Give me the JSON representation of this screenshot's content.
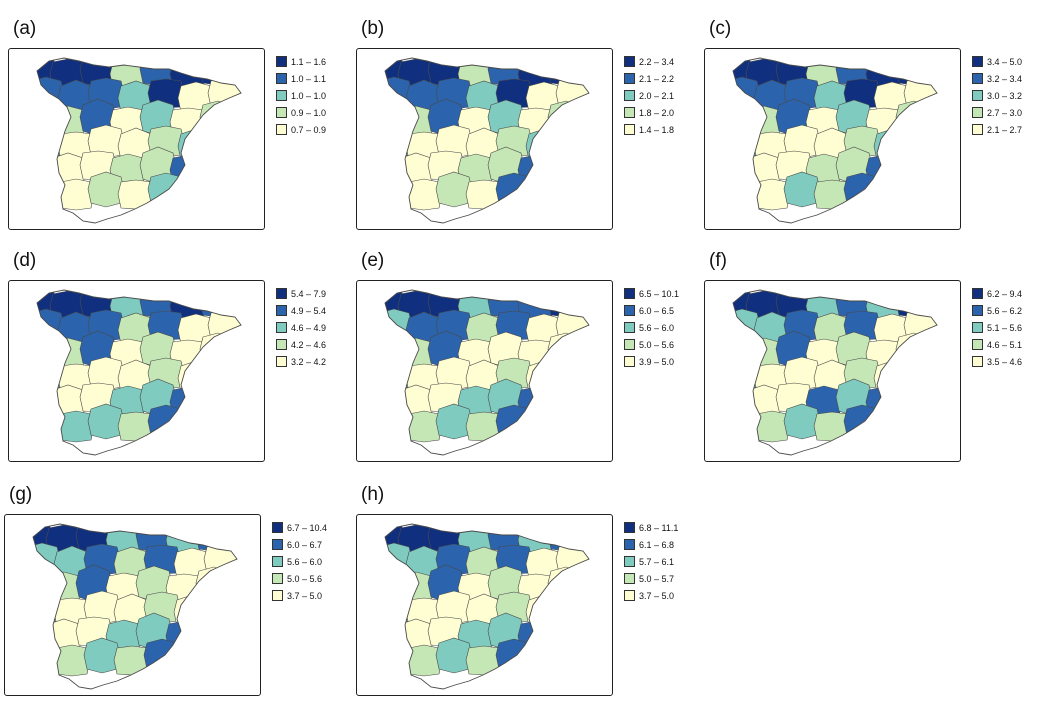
{
  "palette": [
    "#10307f",
    "#2b63ac",
    "#7fcbbf",
    "#c5e6b5",
    "#fefed2"
  ],
  "panels": [
    {
      "tag": "(a)",
      "legend": [
        "1.1 – 1.6",
        "1.0 – 1.1",
        "1.0 – 1.0",
        "0.9 – 1.0",
        "0.7 – 0.9"
      ],
      "fills": [
        0,
        0,
        0,
        3,
        1,
        0,
        0,
        1,
        1,
        1,
        2,
        0,
        4,
        4,
        3,
        3,
        1,
        4,
        2,
        4,
        3,
        2,
        4,
        4,
        4,
        3,
        2,
        4,
        3,
        4,
        4,
        3,
        3,
        1,
        4,
        3,
        4,
        3,
        4,
        2,
        1,
        1
      ]
    },
    {
      "tag": "(b)",
      "legend": [
        "2.2 – 3.4",
        "2.1 – 2.2",
        "2.0 – 2.1",
        "1.8 – 2.0",
        "1.4 – 1.8"
      ],
      "fills": [
        0,
        0,
        0,
        3,
        1,
        0,
        0,
        1,
        1,
        1,
        2,
        0,
        4,
        4,
        3,
        3,
        1,
        4,
        2,
        4,
        3,
        2,
        4,
        4,
        4,
        3,
        2,
        4,
        3,
        4,
        4,
        3,
        3,
        1,
        4,
        3,
        4,
        3,
        4,
        1,
        0,
        3
      ]
    },
    {
      "tag": "(c)",
      "legend": [
        "3.4 – 5.0",
        "3.2 – 3.4",
        "3.0 – 3.2",
        "2.7 – 3.0",
        "2.1 – 2.7"
      ],
      "fills": [
        0,
        0,
        0,
        3,
        1,
        0,
        0,
        1,
        1,
        1,
        2,
        0,
        4,
        4,
        3,
        3,
        1,
        4,
        2,
        4,
        3,
        2,
        4,
        4,
        4,
        3,
        2,
        4,
        3,
        4,
        4,
        3,
        3,
        1,
        4,
        3,
        4,
        2,
        3,
        1,
        0,
        0
      ]
    },
    {
      "tag": "(d)",
      "legend": [
        "5.4 – 7.9",
        "4.9 – 5.4",
        "4.6 – 4.9",
        "4.2 – 4.6",
        "3.2 – 4.2"
      ],
      "fills": [
        0,
        0,
        0,
        2,
        1,
        0,
        1,
        1,
        1,
        1,
        3,
        1,
        4,
        4,
        4,
        3,
        1,
        4,
        3,
        4,
        4,
        2,
        4,
        4,
        4,
        3,
        4,
        4,
        3,
        4,
        4,
        2,
        2,
        1,
        4,
        4,
        2,
        2,
        3,
        1,
        0,
        0
      ]
    },
    {
      "tag": "(e)",
      "legend": [
        "6.5 – 10.1",
        "6.0 – 6.5",
        "5.6 – 6.0",
        "5.0 – 5.6",
        "3.9 – 5.0"
      ],
      "fills": [
        0,
        0,
        0,
        2,
        1,
        1,
        0,
        2,
        1,
        1,
        3,
        1,
        4,
        4,
        4,
        3,
        1,
        4,
        4,
        4,
        4,
        2,
        4,
        4,
        4,
        3,
        4,
        4,
        4,
        4,
        4,
        2,
        2,
        1,
        4,
        4,
        3,
        2,
        3,
        1,
        0,
        0
      ]
    },
    {
      "tag": "(f)",
      "legend": [
        "6.2 – 9.4",
        "5.6 – 6.2",
        "5.1 – 5.6",
        "4.6 – 5.1",
        "3.5 – 4.6"
      ],
      "fills": [
        0,
        0,
        0,
        2,
        1,
        2,
        0,
        2,
        2,
        1,
        3,
        1,
        4,
        4,
        4,
        3,
        1,
        4,
        3,
        4,
        4,
        2,
        4,
        4,
        4,
        3,
        4,
        4,
        3,
        4,
        4,
        1,
        2,
        1,
        4,
        4,
        3,
        2,
        3,
        1,
        0,
        0
      ]
    },
    {
      "tag": "(g)",
      "legend": [
        "6.7 – 10.4",
        "6.0 – 6.7",
        "5.6 – 6.0",
        "5.0 – 5.6",
        "3.7 – 5.0"
      ],
      "fills": [
        0,
        0,
        0,
        2,
        1,
        2,
        1,
        2,
        2,
        1,
        3,
        1,
        4,
        4,
        4,
        3,
        1,
        4,
        3,
        4,
        4,
        2,
        4,
        4,
        4,
        3,
        4,
        4,
        4,
        4,
        4,
        2,
        2,
        1,
        4,
        4,
        3,
        2,
        3,
        1,
        0,
        0
      ]
    },
    {
      "tag": "(h)",
      "legend": [
        "6.8 – 11.1",
        "6.1 – 6.8",
        "5.7 – 6.1",
        "5.0 – 5.7",
        "3.7 – 5.0"
      ],
      "fills": [
        0,
        0,
        0,
        2,
        1,
        2,
        1,
        2,
        2,
        1,
        3,
        1,
        4,
        4,
        4,
        3,
        1,
        4,
        3,
        4,
        4,
        2,
        4,
        4,
        4,
        3,
        4,
        4,
        4,
        4,
        4,
        2,
        2,
        1,
        4,
        4,
        3,
        2,
        3,
        1,
        0,
        0
      ]
    }
  ]
}
